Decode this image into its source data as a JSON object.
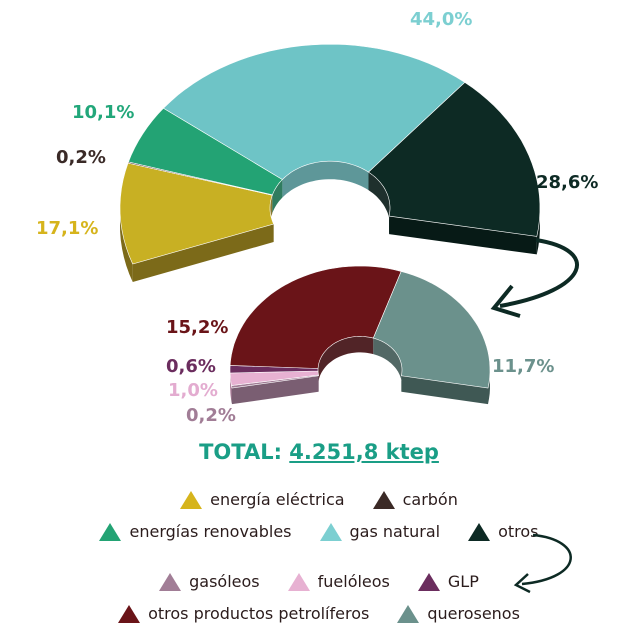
{
  "chart_data": [
    {
      "type": "pie",
      "style": "3d-half-donut",
      "series": [
        {
          "name": "energía eléctrica",
          "value": 17.1,
          "label": "17,1%",
          "color": "#c8b023",
          "side": "#7c6a19",
          "top": "#a89218"
        },
        {
          "name": "carbón",
          "value": 0.2,
          "label": "0,2%",
          "color": "#3b2a26",
          "side": "#2a1c19",
          "top": "#3b2a26"
        },
        {
          "name": "energías renovables",
          "value": 10.1,
          "label": "10,1%",
          "color": "#23a374",
          "side": "#1a6e4e",
          "top": "#1d8a60"
        },
        {
          "name": "gas natural",
          "value": 44.0,
          "label": "44,0%",
          "color": "#6ec4c6",
          "side": "#4d8c8e",
          "top": "#5a9c9e"
        },
        {
          "name": "otros",
          "value": 28.6,
          "label": "28,6%",
          "color": "#0d2a24",
          "side": "#071a16",
          "top": "#0d2a24"
        }
      ],
      "label_colors": {
        "energía eléctrica": "#d6b41c",
        "carbón": "#3a2a27",
        "energías renovables": "#22a77a",
        "gas natural": "#7ccfd1",
        "otros": "#0d2a24"
      }
    },
    {
      "type": "pie",
      "style": "3d-half-donut",
      "series": [
        {
          "name": "gasóleos",
          "value": 0.2,
          "label": "0,2%",
          "color": "#a17d96",
          "side": "#7a5e72",
          "top": "#a17d96"
        },
        {
          "name": "fuelóleos",
          "value": 1.0,
          "label": "1,0%",
          "color": "#e7b1d2",
          "side": "#b98aa6",
          "top": "#e7b1d2"
        },
        {
          "name": "GLP",
          "value": 0.6,
          "label": "0,6%",
          "color": "#6b2d5e",
          "side": "#4a1f41",
          "top": "#6b2d5e"
        },
        {
          "name": "otros productos petrolíferos",
          "value": 15.2,
          "label": "15,2%",
          "color": "#6a1418",
          "side": "#3e0c0f",
          "top": "#4c0f12"
        },
        {
          "name": "querosenos",
          "value": 11.7,
          "label": "11,7%",
          "color": "#6b918c",
          "side": "#3f5854",
          "top": "#5a7a76"
        }
      ],
      "label_colors": {
        "gasóleos": "#a17d96",
        "fuelóleos": "#e3acd0",
        "GLP": "#6b2d5e",
        "otros productos petrolíferos": "#6a1418",
        "querosenos": "#6b918c"
      }
    }
  ],
  "total": {
    "prefix": "TOTAL:",
    "value": "4.251,8 ktep"
  },
  "legend": {
    "row1": [
      {
        "name": "energía eléctrica",
        "color": "#d6b41c"
      },
      {
        "name": "carbón",
        "color": "#3b2a26"
      }
    ],
    "row2": [
      {
        "name": "energías renovables",
        "color": "#23a374"
      },
      {
        "name": "gas natural",
        "color": "#7ccfd1"
      },
      {
        "name": "otros",
        "color": "#0d2a24"
      }
    ],
    "row3": [
      {
        "name": "gasóleos",
        "color": "#a17d96"
      },
      {
        "name": "fuelóleos",
        "color": "#e7b1d2"
      },
      {
        "name": "GLP",
        "color": "#6b2d5e"
      }
    ],
    "row4": [
      {
        "name": "otros productos petrolíferos",
        "color": "#6a1418"
      },
      {
        "name": "querosenos",
        "color": "#6b918c"
      }
    ]
  },
  "arrow_color": "#0d2a24"
}
